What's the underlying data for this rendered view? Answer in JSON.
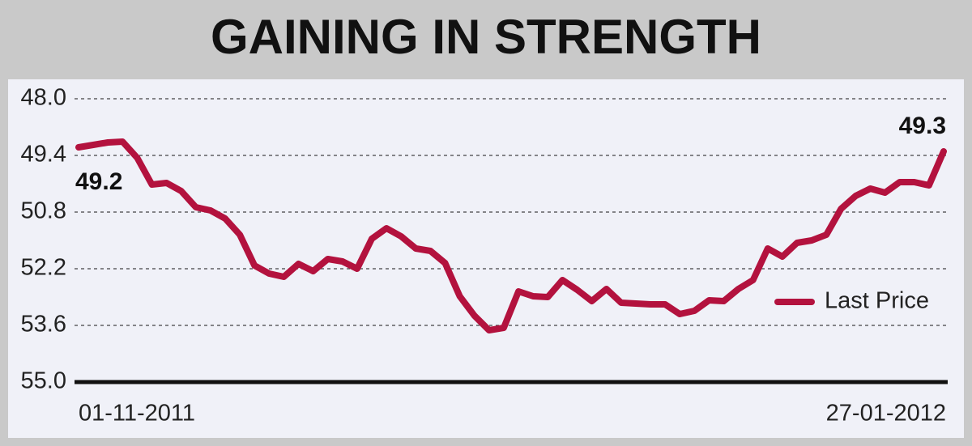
{
  "chart_data": {
    "type": "line",
    "title": "GAINING IN STRENGTH",
    "categories": [
      "01-11-2011",
      null,
      null,
      null,
      null,
      null,
      null,
      null,
      null,
      null,
      null,
      null,
      null,
      null,
      null,
      null,
      null,
      null,
      null,
      null,
      null,
      null,
      null,
      null,
      null,
      null,
      null,
      null,
      null,
      null,
      null,
      null,
      null,
      null,
      null,
      null,
      null,
      null,
      null,
      null,
      null,
      null,
      null,
      null,
      null,
      null,
      null,
      null,
      null,
      null,
      null,
      null,
      null,
      null,
      null,
      null,
      null,
      null,
      null,
      "27-01-2012"
    ],
    "series": [
      {
        "name": "Last Price",
        "color": "#b3123e",
        "values": [
          49.2,
          49.14,
          49.08,
          49.06,
          49.46,
          50.12,
          50.08,
          50.28,
          50.68,
          50.76,
          50.96,
          51.36,
          52.12,
          52.32,
          52.4,
          52.08,
          52.26,
          51.96,
          52.02,
          52.2,
          51.46,
          51.2,
          51.4,
          51.7,
          51.76,
          52.06,
          52.88,
          53.36,
          53.72,
          53.66,
          52.76,
          52.88,
          52.9,
          52.48,
          52.72,
          53.0,
          52.7,
          53.04,
          53.06,
          53.08,
          53.08,
          53.32,
          53.24,
          52.98,
          53.0,
          52.7,
          52.48,
          51.7,
          51.9,
          51.56,
          51.5,
          51.36,
          50.72,
          50.4,
          50.22,
          50.32,
          50.06,
          50.06,
          50.14,
          49.3
        ],
        "value_labels": [
          "49.2",
          null,
          null,
          null,
          null,
          null,
          null,
          null,
          null,
          null,
          null,
          null,
          null,
          null,
          null,
          null,
          null,
          null,
          null,
          null,
          null,
          null,
          null,
          null,
          null,
          null,
          null,
          null,
          null,
          null,
          null,
          null,
          null,
          null,
          null,
          null,
          null,
          null,
          null,
          null,
          null,
          null,
          null,
          null,
          null,
          null,
          null,
          null,
          null,
          null,
          null,
          null,
          null,
          null,
          null,
          null,
          null,
          null,
          null,
          "49.3"
        ]
      }
    ],
    "ylim": [
      55.0,
      48.0
    ],
    "yticks": [
      {
        "value": 48,
        "label": "48.0"
      },
      49.4,
      50.8,
      52.2,
      53.6,
      {
        "value": 55,
        "label": "55.0"
      }
    ],
    "grid": true,
    "legend": "lower right"
  }
}
